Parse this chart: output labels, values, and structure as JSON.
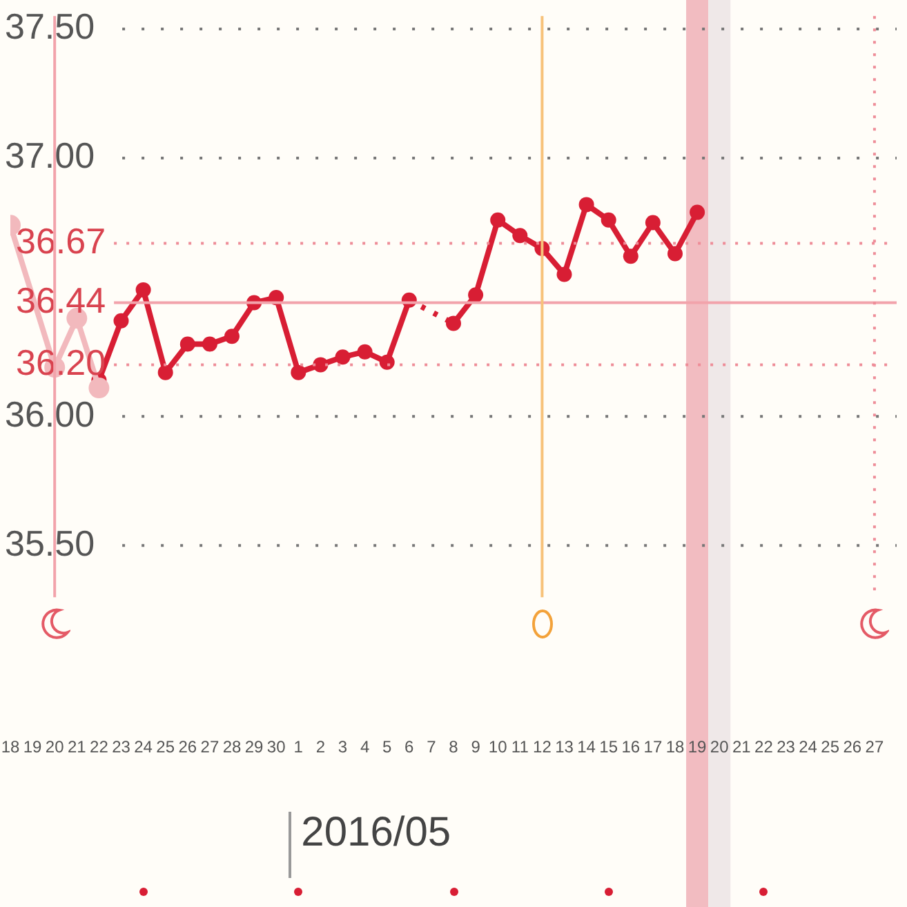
{
  "chart_data": {
    "type": "line",
    "marker": "circle",
    "legend": false,
    "grid": "y",
    "annotations": [
      "2016/05"
    ],
    "xlim": [
      "2016-04-18",
      "2016-05-28T00:00"
    ],
    "xticks": [
      {
        "value": "2016-04-18",
        "label": "18"
      },
      {
        "value": "2016-04-19",
        "label": "19"
      },
      {
        "value": "2016-04-20",
        "label": "20"
      },
      {
        "value": "2016-04-21",
        "label": "21"
      },
      {
        "value": "2016-04-22",
        "label": "22"
      },
      {
        "value": "2016-04-23",
        "label": "23"
      },
      {
        "value": "2016-04-24",
        "label": "24"
      },
      {
        "value": "2016-04-25",
        "label": "25"
      },
      {
        "value": "2016-04-26",
        "label": "26"
      },
      {
        "value": "2016-04-27",
        "label": "27"
      },
      {
        "value": "2016-04-28",
        "label": "28"
      },
      {
        "value": "2016-04-29",
        "label": "29"
      },
      {
        "value": "2016-04-30",
        "label": "30"
      },
      {
        "value": "2016-05-01",
        "label": "1"
      },
      {
        "value": "2016-05-02",
        "label": "2"
      },
      {
        "value": "2016-05-03",
        "label": "3"
      },
      {
        "value": "2016-05-04",
        "label": "4"
      },
      {
        "value": "2016-05-05",
        "label": "5"
      },
      {
        "value": "2016-05-06",
        "label": "6"
      },
      {
        "value": "2016-05-07",
        "label": "7"
      },
      {
        "value": "2016-05-08",
        "label": "8"
      },
      {
        "value": "2016-05-09",
        "label": "9"
      },
      {
        "value": "2016-05-10",
        "label": "10"
      },
      {
        "value": "2016-05-11",
        "label": "11"
      },
      {
        "value": "2016-05-12",
        "label": "12"
      },
      {
        "value": "2016-05-13",
        "label": "13"
      },
      {
        "value": "2016-05-14",
        "label": "14"
      },
      {
        "value": "2016-05-15",
        "label": "15"
      },
      {
        "value": "2016-05-16",
        "label": "16"
      },
      {
        "value": "2016-05-17",
        "label": "17"
      },
      {
        "value": "2016-05-18",
        "label": "18"
      },
      {
        "value": "2016-05-19",
        "label": "19"
      },
      {
        "value": "2016-05-20",
        "label": "20"
      },
      {
        "value": "2016-05-21",
        "label": "21"
      },
      {
        "value": "2016-05-22",
        "label": "22"
      },
      {
        "value": "2016-05-23",
        "label": "23"
      },
      {
        "value": "2016-05-24",
        "label": "24"
      },
      {
        "value": "2016-05-25",
        "label": "25"
      },
      {
        "value": "2016-05-26",
        "label": "26"
      },
      {
        "value": "2016-05-27",
        "label": "27"
      }
    ],
    "ylim": [
      35.3,
      37.55
    ],
    "yticks": [
      {
        "value": 35.5,
        "label": "35.50"
      },
      {
        "value": 36,
        "label": "36.00"
      },
      {
        "value": 37,
        "label": "37.00"
      },
      {
        "value": 37.5,
        "label": "37.50"
      }
    ],
    "ref_lines": [
      {
        "axis": "y",
        "value": 36.67,
        "label": "36.67",
        "color": "#ee8d98",
        "line_style": "dotted"
      },
      {
        "axis": "y",
        "value": 36.44,
        "label": "36.44",
        "color": "#f2a3ab",
        "line_style": "solid"
      },
      {
        "axis": "y",
        "value": 36.2,
        "label": "36.20",
        "color": "#ee8d98",
        "line_style": "dotted"
      },
      {
        "axis": "x",
        "value": "2016-04-20",
        "color": "#f2a3ab",
        "line_style": "solid"
      },
      {
        "axis": "x",
        "value": "2016-05-12",
        "color": "#f7c27a",
        "line_style": "solid"
      },
      {
        "axis": "x",
        "value": "2016-05-27",
        "color": "#ee8d98",
        "line_style": "dotted"
      }
    ],
    "bands": [
      {
        "axis": "x",
        "from": "2016-05-18T12:00",
        "to": "2016-05-19T12:00",
        "color": "#f2bcc1"
      },
      {
        "axis": "x",
        "from": "2016-05-19T12:00",
        "to": "2016-05-20T12:00",
        "color": "#efe8e8"
      }
    ],
    "series": [
      {
        "color": "#f2b9bd",
        "x": [
          "2016-04-18",
          "2016-04-20",
          "2016-04-21",
          "2016-04-22"
        ],
        "values": [
          36.74,
          36.19,
          36.38,
          36.11
        ]
      },
      {
        "color": "#d81e34",
        "x": [
          "2016-04-22",
          "2016-04-23",
          "2016-04-24",
          "2016-04-25",
          "2016-04-26",
          "2016-04-27",
          "2016-04-28",
          "2016-04-29",
          "2016-04-30",
          "2016-05-01",
          "2016-05-02",
          "2016-05-03",
          "2016-05-04",
          "2016-05-05",
          "2016-05-06",
          "2016-05-08",
          "2016-05-09",
          "2016-05-10",
          "2016-05-11",
          "2016-05-12",
          "2016-05-13",
          "2016-05-14",
          "2016-05-15",
          "2016-05-16",
          "2016-05-17",
          "2016-05-18",
          "2016-05-19"
        ],
        "values": [
          36.14,
          36.37,
          36.49,
          36.17,
          36.28,
          36.28,
          36.31,
          36.44,
          36.46,
          36.17,
          36.2,
          36.23,
          36.25,
          36.21,
          36.45,
          36.36,
          36.47,
          36.76,
          36.7,
          36.65,
          36.55,
          36.82,
          36.76,
          36.62,
          36.75,
          36.63,
          36.79
        ]
      }
    ]
  }
}
